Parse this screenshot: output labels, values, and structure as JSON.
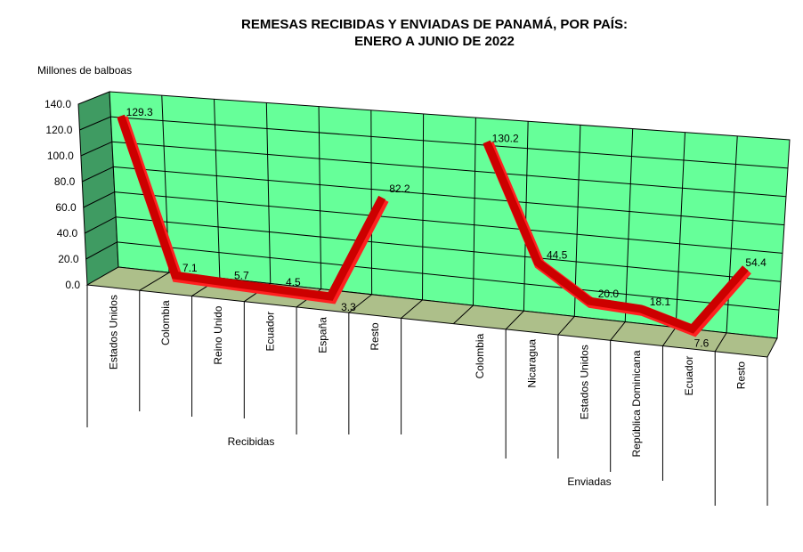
{
  "chart_data": {
    "type": "line",
    "title": [
      "REMESAS RECIBIDAS Y ENVIADAS DE PANAMÁ, POR PAÍS:",
      "ENERO A JUNIO DE 2022"
    ],
    "ylabel": "Millones de balboas",
    "ylim": [
      0,
      140
    ],
    "yticks": [
      "0.0",
      "20.0",
      "40.0",
      "60.0",
      "80.0",
      "100.0",
      "120.0",
      "140.0"
    ],
    "grid": true,
    "groups": [
      {
        "name": "Recibidas",
        "categories": [
          "Estados Unidos",
          "Colombia",
          "Reino Unido",
          "Ecuador",
          "España",
          "Resto"
        ],
        "values": [
          129.3,
          7.1,
          5.7,
          4.5,
          3.3,
          82.2
        ],
        "labels": [
          "129.3",
          "7.1",
          "5.7",
          "4.5",
          "3.3",
          "82.2"
        ]
      },
      {
        "name": "Enviadas",
        "categories": [
          "Colombia",
          "Nicaragua",
          "Estados Unidos",
          "República Dominicana",
          "Ecuador",
          "Resto"
        ],
        "values": [
          130.2,
          44.5,
          20.0,
          18.1,
          7.6,
          54.4
        ],
        "labels": [
          "130.2",
          "44.5",
          "20.0",
          "18.1",
          "7.6",
          "54.4"
        ]
      }
    ],
    "colors": {
      "line": "#cc0000",
      "line_edge": "#ff2020",
      "wall": "#66ff99",
      "side_wall": "#3f9b62",
      "floor": "#adbf8a"
    }
  }
}
